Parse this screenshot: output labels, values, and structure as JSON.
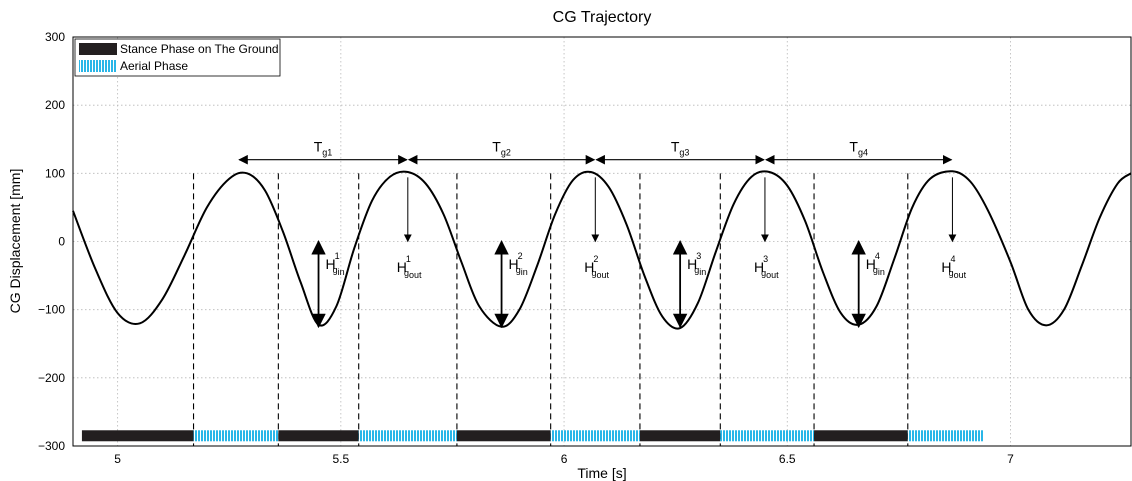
{
  "chart_data": {
    "type": "line",
    "title": "CG Trajectory",
    "xlabel": "Time [s]",
    "ylabel": "CG Displacement [mm]",
    "xlim": [
      4.9,
      7.27
    ],
    "ylim": [
      -300,
      300
    ],
    "xticks": [
      5,
      5.5,
      6,
      6.5,
      7
    ],
    "xtick_labels": [
      "5",
      "5.5",
      "6",
      "6.5",
      "7"
    ],
    "yticks": [
      -300,
      -200,
      -100,
      0,
      100,
      200,
      300
    ],
    "ytick_labels": [
      "−300",
      "−200",
      "−100",
      "0",
      "100",
      "200",
      "300"
    ],
    "grid": true,
    "legend_position": "top-left",
    "series": [
      {
        "x": [
          4.9,
          4.95,
          5.0,
          5.05,
          5.1,
          5.15,
          5.2,
          5.25,
          5.29,
          5.33,
          5.37,
          5.41,
          5.45,
          5.49,
          5.53,
          5.57,
          5.61,
          5.65,
          5.69,
          5.73,
          5.77,
          5.81,
          5.86,
          5.9,
          5.94,
          5.98,
          6.02,
          6.06,
          6.1,
          6.14,
          6.18,
          6.22,
          6.26,
          6.3,
          6.34,
          6.38,
          6.42,
          6.46,
          6.5,
          6.54,
          6.58,
          6.62,
          6.66,
          6.7,
          6.74,
          6.78,
          6.82,
          6.87,
          6.91,
          6.95,
          7.0,
          7.04,
          7.08,
          7.12,
          7.16,
          7.2,
          7.24,
          7.27
        ],
        "y": [
          45,
          -40,
          -105,
          -120,
          -85,
          -20,
          50,
          92,
          100,
          75,
          15,
          -60,
          -122,
          -95,
          -10,
          60,
          95,
          102,
          85,
          40,
          -30,
          -95,
          -125,
          -100,
          -35,
          40,
          90,
          102,
          80,
          25,
          -50,
          -110,
          -127,
          -90,
          -15,
          55,
          95,
          102,
          82,
          30,
          -45,
          -105,
          -122,
          -95,
          -25,
          50,
          92,
          103,
          88,
          45,
          -30,
          -100,
          -123,
          -100,
          -35,
          35,
          85,
          100
        ]
      }
    ],
    "legend": [
      {
        "label": "Stance Phase on The Ground",
        "color": "#231f20"
      },
      {
        "label": "Aerial Phase",
        "color": "#29b6e8"
      }
    ],
    "phase_bar": {
      "y": -285,
      "segments": [
        {
          "phase": "stance",
          "x0": 4.92,
          "x1": 5.17
        },
        {
          "phase": "aerial",
          "x0": 5.17,
          "x1": 5.36
        },
        {
          "phase": "stance",
          "x0": 5.36,
          "x1": 5.54
        },
        {
          "phase": "aerial",
          "x0": 5.54,
          "x1": 5.76
        },
        {
          "phase": "stance",
          "x0": 5.76,
          "x1": 5.97
        },
        {
          "phase": "aerial",
          "x0": 5.97,
          "x1": 6.17
        },
        {
          "phase": "stance",
          "x0": 6.17,
          "x1": 6.35
        },
        {
          "phase": "aerial",
          "x0": 6.35,
          "x1": 6.56
        },
        {
          "phase": "stance",
          "x0": 6.56,
          "x1": 6.77
        },
        {
          "phase": "aerial",
          "x0": 6.77,
          "x1": 6.94
        }
      ]
    },
    "phase_boundaries": [
      5.17,
      5.36,
      5.54,
      5.76,
      5.97,
      6.17,
      6.35,
      6.56,
      6.77
    ],
    "periods": [
      {
        "base": "T",
        "sub": "g1",
        "x0": 5.27,
        "x1": 5.65,
        "y": 120
      },
      {
        "base": "T",
        "sub": "g2",
        "x0": 5.65,
        "x1": 6.07,
        "y": 120
      },
      {
        "base": "T",
        "sub": "g3",
        "x0": 6.07,
        "x1": 6.45,
        "y": 120
      },
      {
        "base": "T",
        "sub": "g4",
        "x0": 6.45,
        "x1": 6.87,
        "y": 120
      }
    ],
    "heights_in": [
      {
        "base": "H",
        "sub": "g",
        "subsub": "in",
        "sup": "1",
        "x": 5.45,
        "y_top": 0,
        "y_bottom": -125
      },
      {
        "base": "H",
        "sub": "g",
        "subsub": "in",
        "sup": "2",
        "x": 5.86,
        "y_top": 0,
        "y_bottom": -125
      },
      {
        "base": "H",
        "sub": "g",
        "subsub": "in",
        "sup": "3",
        "x": 6.26,
        "y_top": 0,
        "y_bottom": -125
      },
      {
        "base": "H",
        "sub": "g",
        "subsub": "in",
        "sup": "4",
        "x": 6.66,
        "y_top": 0,
        "y_bottom": -125
      }
    ],
    "heights_out": [
      {
        "base": "H",
        "sub": "g",
        "subsub": "out",
        "sup": "1",
        "x": 5.65,
        "y_top": 100,
        "y_bottom": 0
      },
      {
        "base": "H",
        "sub": "g",
        "subsub": "out",
        "sup": "2",
        "x": 6.07,
        "y_top": 100,
        "y_bottom": 0
      },
      {
        "base": "H",
        "sub": "g",
        "subsub": "out",
        "sup": "3",
        "x": 6.45,
        "y_top": 100,
        "y_bottom": 0
      },
      {
        "base": "H",
        "sub": "g",
        "subsub": "out",
        "sup": "4",
        "x": 6.87,
        "y_top": 100,
        "y_bottom": 0
      }
    ]
  }
}
